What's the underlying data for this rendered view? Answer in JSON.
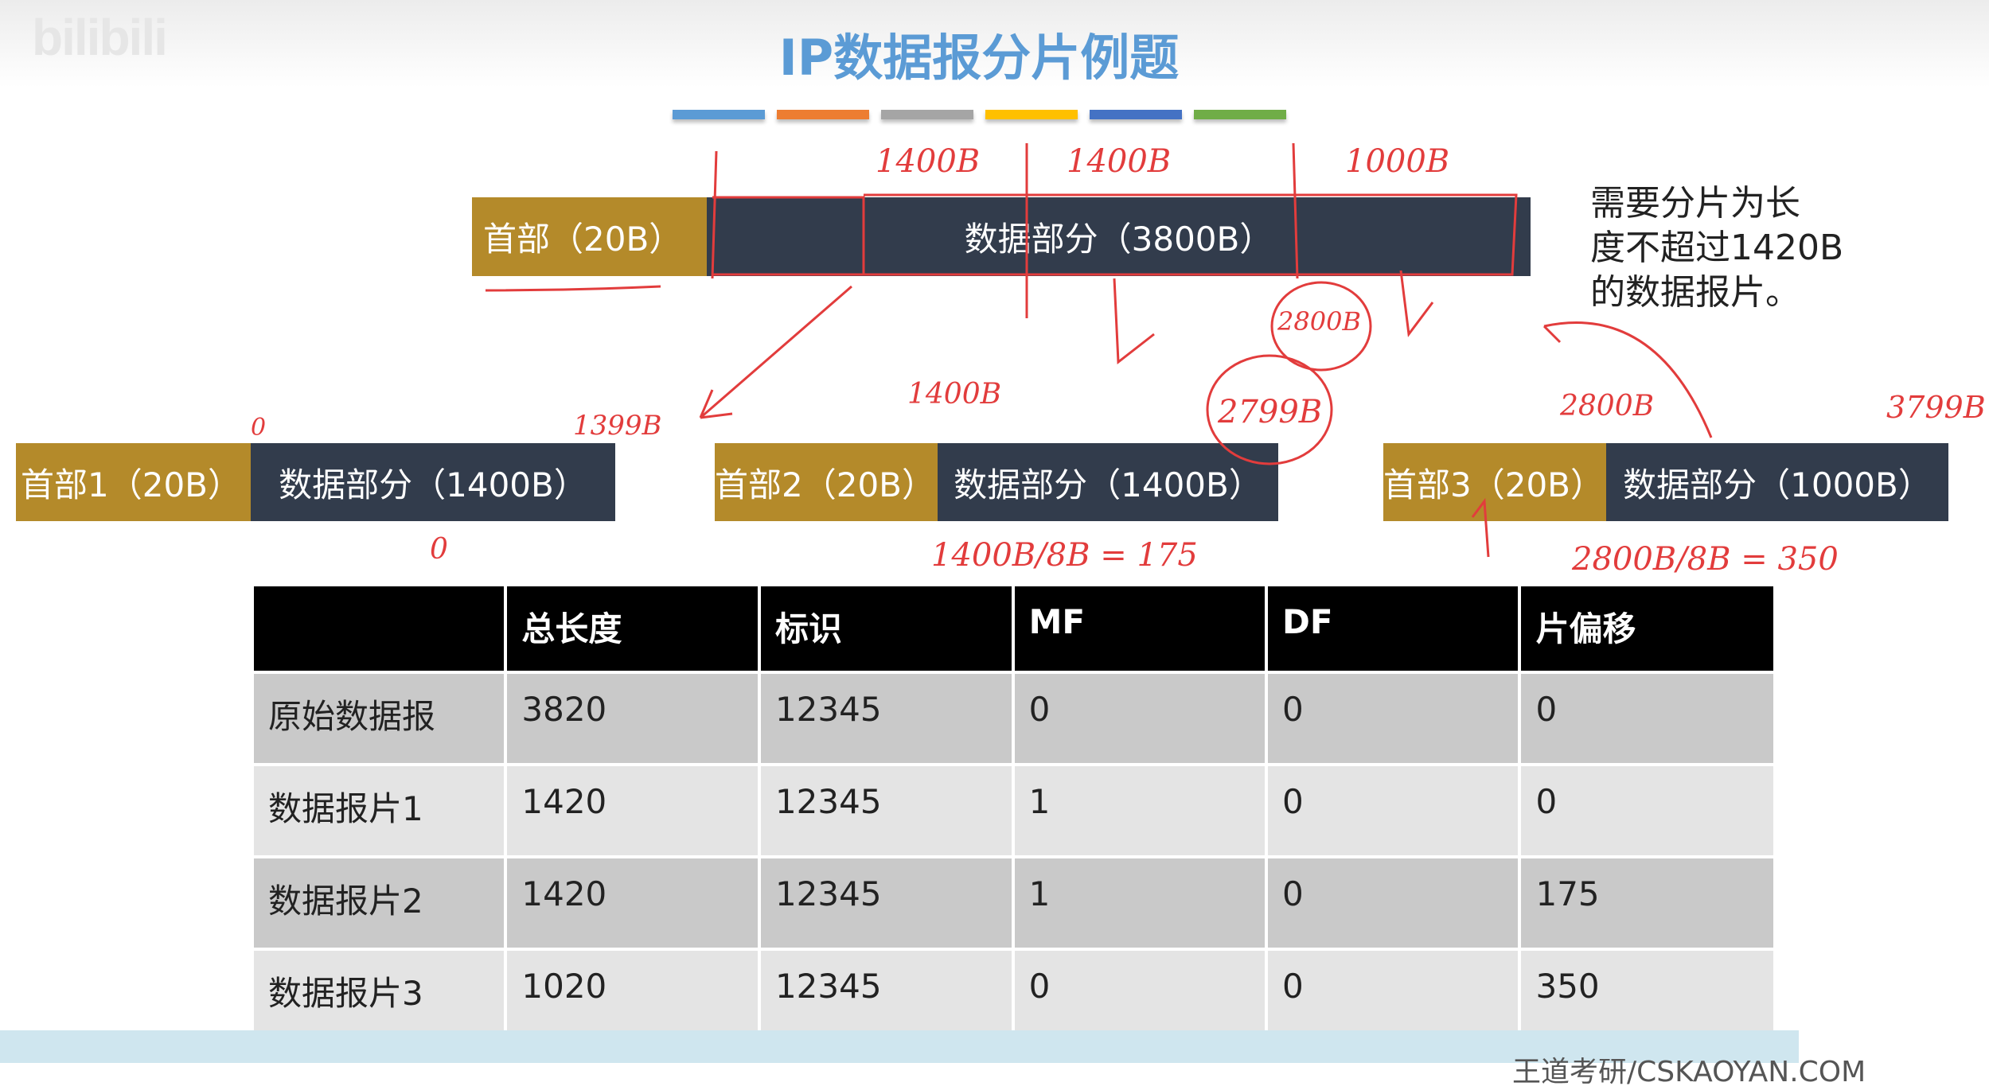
{
  "watermark": "bilibili",
  "title": "IP数据报分片例题",
  "accent_bars": [
    "#5b9bd5",
    "#ed7d31",
    "#a5a5a5",
    "#ffc000",
    "#4472c4",
    "#70ad47"
  ],
  "colors": {
    "header_box": "#b48a2a",
    "data_box": "#323c4c",
    "annotation": "#e23c3c"
  },
  "original": {
    "header": "首部（20B）",
    "data": "数据部分（3800B）"
  },
  "note": [
    "需要分片为长",
    "度不超过1420B",
    "的数据报片。"
  ],
  "fragments": [
    {
      "header": "首部1（20B）",
      "data": "数据部分（1400B）"
    },
    {
      "header": "首部2（20B）",
      "data": "数据部分（1400B）"
    },
    {
      "header": "首部3（20B）",
      "data": "数据部分（1000B）"
    }
  ],
  "table": {
    "headers": [
      "",
      "总长度",
      "标识",
      "MF",
      "DF",
      "片偏移"
    ],
    "rows": [
      [
        "原始数据报",
        "3820",
        "12345",
        "0",
        "0",
        "0"
      ],
      [
        "数据报片1",
        "1420",
        "12345",
        "1",
        "0",
        "0"
      ],
      [
        "数据报片2",
        "1420",
        "12345",
        "1",
        "0",
        "175"
      ],
      [
        "数据报片3",
        "1020",
        "12345",
        "0",
        "0",
        "350"
      ]
    ]
  },
  "annotations": [
    "1400B",
    "1400B",
    "1000B",
    "2800B",
    "2799B",
    "0",
    "1399B",
    "1400B",
    "2800B",
    "3799B",
    "0",
    "1400B/8B = 175",
    "2800B/8B = 350"
  ],
  "footer": "王道考研/CSKAOYAN.COM"
}
